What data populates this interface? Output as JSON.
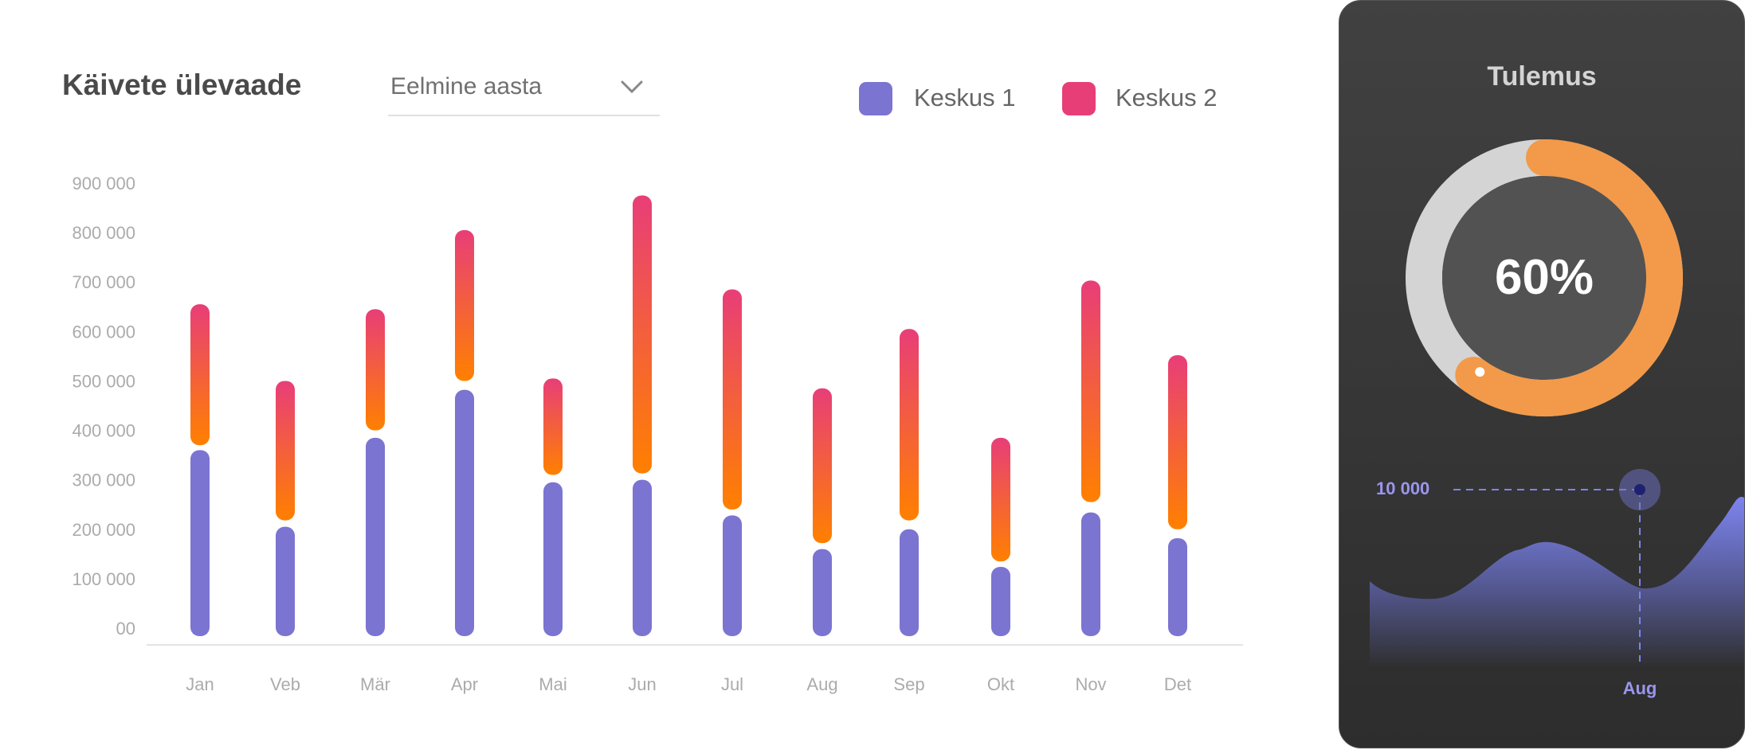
{
  "header": {
    "title": "Käivete ülevaade",
    "period_select": {
      "value": "Eelmine aasta",
      "icon": "chevron-down-icon"
    }
  },
  "chart_data": {
    "type": "bar",
    "title": "Käivete ülevaade",
    "categories": [
      "Jan",
      "Veb",
      "Mär",
      "Apr",
      "Mai",
      "Jun",
      "Jul",
      "Aug",
      "Sep",
      "Okt",
      "Nov",
      "Det"
    ],
    "y_ticks": [
      "00",
      "100 000",
      "200 000",
      "300 000",
      "400 000",
      "500 000",
      "600 000",
      "700 000",
      "800 000",
      "900 000"
    ],
    "ylim": [
      0,
      900000
    ],
    "grid": false,
    "legend_position": "top-right",
    "series": [
      {
        "name": "Keskus 1",
        "color": "#7b74d1",
        "values": [
          360000,
          205000,
          385000,
          482000,
          295000,
          300000,
          228000,
          160000,
          200000,
          124000,
          234000,
          182000
        ]
      },
      {
        "name": "Keskus 2",
        "color_top": "#e83e78",
        "color_bottom": "#ff8000",
        "ranges": [
          [
            370000,
            655000
          ],
          [
            218000,
            500000
          ],
          [
            400000,
            645000
          ],
          [
            500000,
            805000
          ],
          [
            310000,
            505000
          ],
          [
            313000,
            875000
          ],
          [
            240000,
            685000
          ],
          [
            172000,
            485000
          ],
          [
            218000,
            605000
          ],
          [
            135000,
            385000
          ],
          [
            255000,
            703000
          ],
          [
            200000,
            552000
          ]
        ]
      }
    ]
  },
  "panel": {
    "title": "Tulemus",
    "percent_label": "60%",
    "percent": 60,
    "accent": "#f29a4a",
    "area_chart": {
      "highlight_value": "10 000",
      "highlight_month": "Aug"
    }
  }
}
